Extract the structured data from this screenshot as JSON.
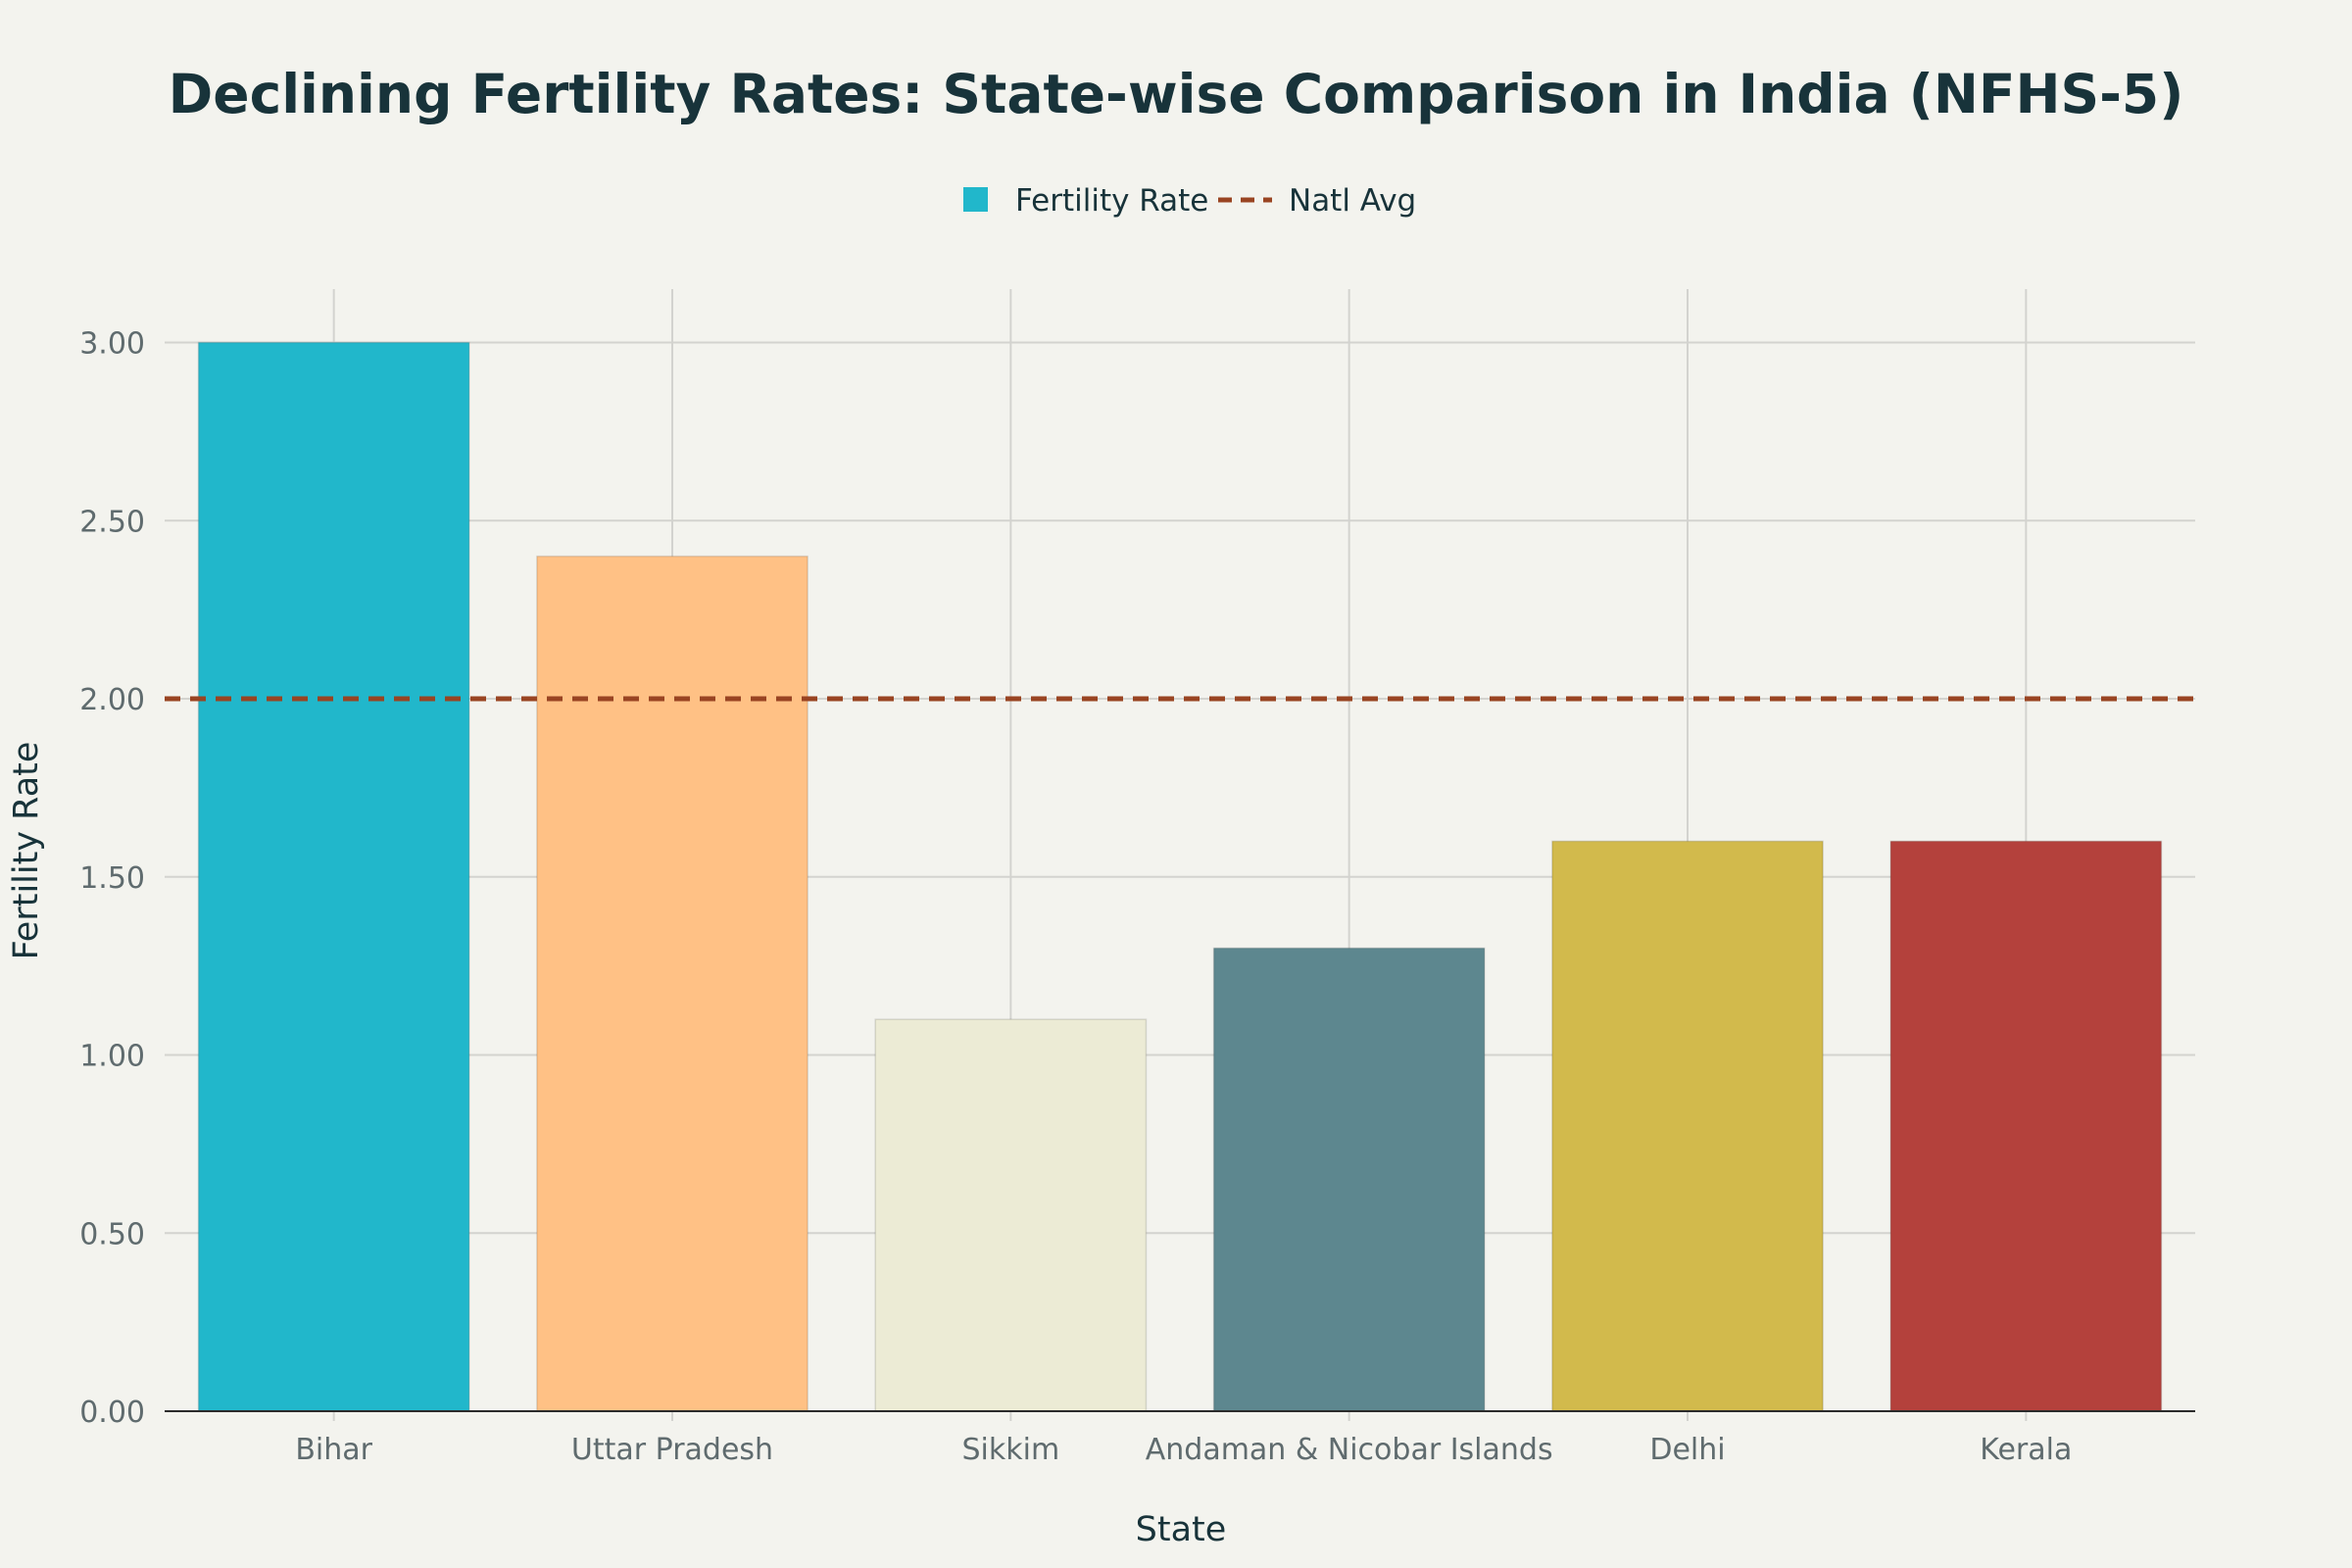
{
  "chart_data": {
    "type": "bar",
    "title": "Declining Fertility Rates: State-wise Comparison in India (NFHS-5)",
    "xlabel": "State",
    "ylabel": "Fertility Rate",
    "categories": [
      "Bihar",
      "Uttar Pradesh",
      "Sikkim",
      "Andaman & Nicobar Islands",
      "Delhi",
      "Kerala"
    ],
    "series": [
      {
        "name": "Fertility Rate",
        "values": [
          3.0,
          2.4,
          1.1,
          1.3,
          1.6,
          1.6
        ],
        "colors": [
          "#21B7CB",
          "#FFC185",
          "#ECEBD5",
          "#5D878F",
          "#D2BA4C",
          "#B4413C"
        ],
        "legend_color": "#21B7CB"
      }
    ],
    "reference_line": {
      "name": "Natl Avg",
      "value": 2.0,
      "color": "#994422",
      "style": "dashed"
    },
    "ylim": [
      0,
      3.15
    ],
    "yticks": [
      0,
      0.5,
      1.0,
      1.5,
      2.0,
      2.5,
      3.0
    ],
    "ytick_labels": [
      "0.00",
      "0.50",
      "1.00",
      "1.50",
      "2.00",
      "2.50",
      "3.00"
    ],
    "grid": true,
    "legend_position": "top-center"
  }
}
